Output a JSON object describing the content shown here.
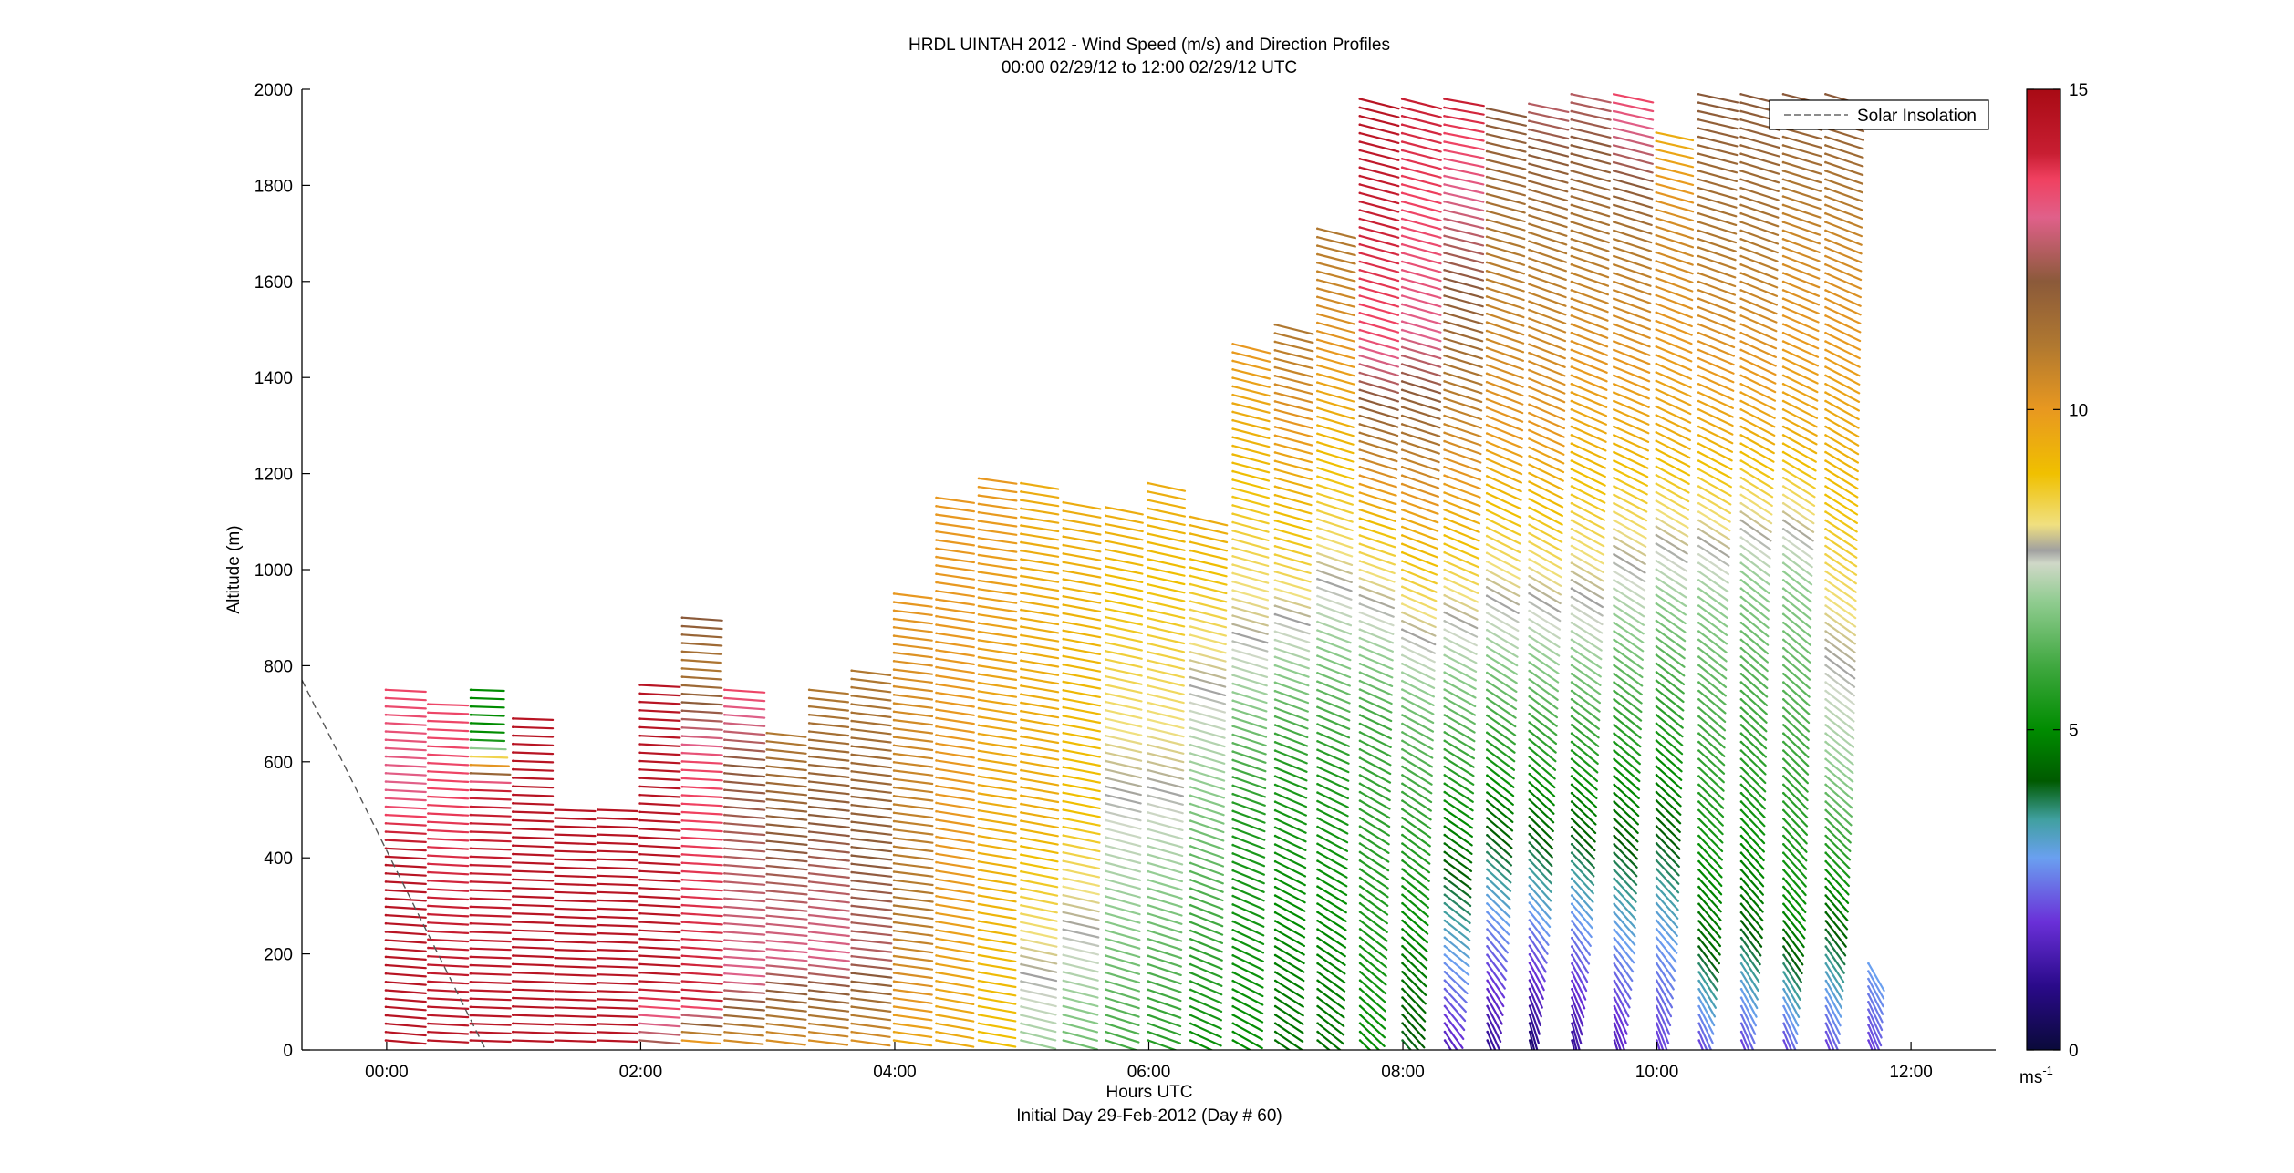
{
  "chart_data": {
    "type": "wind-barb-profile",
    "title": "HRDL UINTAH 2012 - Wind Speed (m/s) and Direction Profiles",
    "subtitle": "00:00 02/29/12 to 12:00 02/29/12  UTC",
    "xlabel": "Hours UTC",
    "xlabel_note": "Initial Day 29-Feb-2012 (Day # 60)",
    "ylabel": "Altitude (m)",
    "xlim": [
      -0.667,
      12.667
    ],
    "ylim": [
      0,
      2000
    ],
    "x_ticks": [
      0,
      2,
      4,
      6,
      8,
      10,
      12
    ],
    "x_tick_labels": [
      "00:00",
      "02:00",
      "04:00",
      "06:00",
      "08:00",
      "10:00",
      "12:00"
    ],
    "y_ticks": [
      0,
      200,
      400,
      600,
      800,
      1000,
      1200,
      1400,
      1600,
      1800,
      2000
    ],
    "y_tick_labels": [
      "0",
      "200",
      "400",
      "600",
      "800",
      "1000",
      "1200",
      "1400",
      "1600",
      "1800",
      "2000"
    ],
    "legend": {
      "placement": "top-right",
      "entries": [
        {
          "label": "Solar Insolation",
          "style": "dashed",
          "color": "#666666"
        }
      ]
    },
    "solar_insolation": {
      "x": [
        -0.667,
        0.78
      ],
      "y": [
        770,
        0
      ]
    },
    "colorbar": {
      "range": [
        0,
        15
      ],
      "ticks": [
        0,
        5,
        10,
        15
      ],
      "tick_labels": [
        "0",
        "5",
        "10",
        "15"
      ],
      "unit_label": "ms",
      "unit_exponent": "-1",
      "stops": [
        {
          "v": 0,
          "color": "#0a0a3a"
        },
        {
          "v": 1,
          "color": "#2a0a8a"
        },
        {
          "v": 2,
          "color": "#6a30d8"
        },
        {
          "v": 3,
          "color": "#6aa0f0"
        },
        {
          "v": 3.6,
          "color": "#40a0a0"
        },
        {
          "v": 4.2,
          "color": "#005a00"
        },
        {
          "v": 5,
          "color": "#008c00"
        },
        {
          "v": 6,
          "color": "#40a840"
        },
        {
          "v": 7,
          "color": "#90cc90"
        },
        {
          "v": 7.6,
          "color": "#d0d8c8"
        },
        {
          "v": 7.8,
          "color": "#a0a0a0"
        },
        {
          "v": 8.2,
          "color": "#f0e080"
        },
        {
          "v": 9,
          "color": "#f0c000"
        },
        {
          "v": 10,
          "color": "#e89820"
        },
        {
          "v": 11,
          "color": "#b07830"
        },
        {
          "v": 12,
          "color": "#8b5a3a"
        },
        {
          "v": 13,
          "color": "#e0608a"
        },
        {
          "v": 13.6,
          "color": "#f04060"
        },
        {
          "v": 14,
          "color": "#c81e32"
        },
        {
          "v": 15,
          "color": "#a80a14"
        }
      ]
    },
    "profiles": [
      {
        "t": 0,
        "ymax": 750,
        "levels": [
          [
            0,
            14.5,
            95,
            7
          ],
          [
            400,
            14.5,
            93,
            7
          ],
          [
            550,
            13,
            93,
            5
          ],
          [
            750,
            13.5,
            93,
            3
          ]
        ]
      },
      {
        "t": 0.333,
        "ymax": 720,
        "levels": [
          [
            0,
            14.5,
            93,
            7
          ],
          [
            600,
            13.5,
            93,
            5
          ],
          [
            720,
            13.5,
            92,
            3
          ]
        ]
      },
      {
        "t": 0.667,
        "ymax": 750,
        "levels": [
          [
            0,
            14.5,
            92,
            6
          ],
          [
            550,
            14,
            92,
            5
          ],
          [
            650,
            5,
            92,
            3
          ],
          [
            750,
            5,
            92,
            2
          ]
        ]
      },
      {
        "t": 1.0,
        "ymax": 690,
        "levels": [
          [
            0,
            14.5,
            92,
            5
          ],
          [
            690,
            14.5,
            92,
            4
          ]
        ]
      },
      {
        "t": 1.333,
        "ymax": 500,
        "levels": [
          [
            0,
            14.5,
            92,
            5
          ],
          [
            500,
            14.5,
            92,
            4
          ]
        ]
      },
      {
        "t": 1.667,
        "ymax": 500,
        "levels": [
          [
            0,
            14.5,
            92,
            5
          ],
          [
            500,
            14.5,
            92,
            4
          ]
        ]
      },
      {
        "t": 2.0,
        "ymax": 760,
        "levels": [
          [
            0,
            12,
            95,
            6
          ],
          [
            150,
            14.5,
            93,
            5
          ],
          [
            760,
            14.5,
            93,
            4
          ]
        ]
      },
      {
        "t": 2.333,
        "ymax": 900,
        "levels": [
          [
            0,
            9,
            95,
            10
          ],
          [
            100,
            14,
            94,
            7
          ],
          [
            600,
            13.5,
            93,
            6
          ],
          [
            800,
            11,
            94,
            5
          ],
          [
            900,
            12,
            94,
            4
          ]
        ]
      },
      {
        "t": 2.667,
        "ymax": 750,
        "levels": [
          [
            0,
            10,
            96,
            10
          ],
          [
            150,
            13,
            94,
            7
          ],
          [
            600,
            12,
            95,
            6
          ],
          [
            750,
            13.5,
            94,
            5
          ]
        ]
      },
      {
        "t": 3.0,
        "ymax": 660,
        "levels": [
          [
            0,
            10,
            97,
            12
          ],
          [
            200,
            13,
            95,
            10
          ],
          [
            660,
            11,
            96,
            8
          ]
        ]
      },
      {
        "t": 3.333,
        "ymax": 750,
        "levels": [
          [
            0,
            10,
            97,
            10
          ],
          [
            200,
            13,
            96,
            9
          ],
          [
            750,
            11,
            96,
            8
          ]
        ]
      },
      {
        "t": 3.667,
        "ymax": 790,
        "levels": [
          [
            0,
            10,
            98,
            12
          ],
          [
            200,
            12.5,
            96,
            10
          ],
          [
            790,
            11,
            97,
            9
          ]
        ]
      },
      {
        "t": 4.0,
        "ymax": 950,
        "levels": [
          [
            0,
            9.5,
            98,
            15
          ],
          [
            300,
            11,
            97,
            13
          ],
          [
            950,
            10,
            97,
            12
          ]
        ]
      },
      {
        "t": 4.333,
        "ymax": 1150,
        "levels": [
          [
            0,
            9.5,
            100,
            20
          ],
          [
            400,
            10,
            99,
            16
          ],
          [
            1150,
            10,
            98,
            13
          ]
        ]
      },
      {
        "t": 4.667,
        "ymax": 1190,
        "levels": [
          [
            0,
            9,
            100,
            22
          ],
          [
            500,
            9.5,
            99,
            18
          ],
          [
            1190,
            10,
            98,
            14
          ]
        ]
      },
      {
        "t": 5.0,
        "ymax": 1180,
        "levels": [
          [
            0,
            7,
            104,
            25
          ],
          [
            500,
            9.5,
            100,
            20
          ],
          [
            1180,
            9.5,
            99,
            16
          ]
        ]
      },
      {
        "t": 5.333,
        "ymax": 1140,
        "levels": [
          [
            0,
            6.5,
            105,
            26
          ],
          [
            500,
            9,
            101,
            22
          ],
          [
            1140,
            9.5,
            100,
            17
          ]
        ]
      },
      {
        "t": 5.667,
        "ymax": 1130,
        "levels": [
          [
            0,
            6,
            108,
            28
          ],
          [
            600,
            8,
            103,
            22
          ],
          [
            1130,
            9.5,
            101,
            18
          ]
        ]
      },
      {
        "t": 6.0,
        "ymax": 1180,
        "levels": [
          [
            0,
            5.5,
            110,
            30
          ],
          [
            600,
            8,
            104,
            24
          ],
          [
            1180,
            9.5,
            102,
            20
          ]
        ]
      },
      {
        "t": 6.333,
        "ymax": 1110,
        "levels": [
          [
            0,
            5,
            115,
            32
          ],
          [
            700,
            7.5,
            106,
            26
          ],
          [
            1110,
            9.5,
            103,
            22
          ]
        ]
      },
      {
        "t": 6.667,
        "ymax": 1470,
        "levels": [
          [
            0,
            5,
            120,
            34
          ],
          [
            500,
            5.5,
            110,
            30
          ],
          [
            900,
            8,
            106,
            26
          ],
          [
            1470,
            10,
            104,
            22
          ]
        ]
      },
      {
        "t": 7.0,
        "ymax": 1510,
        "levels": [
          [
            0,
            4.5,
            125,
            36
          ],
          [
            600,
            5.5,
            112,
            32
          ],
          [
            1000,
            8.5,
            106,
            28
          ],
          [
            1510,
            11,
            104,
            24
          ]
        ]
      },
      {
        "t": 7.333,
        "ymax": 1710,
        "levels": [
          [
            0,
            4.5,
            130,
            38
          ],
          [
            600,
            5.5,
            114,
            34
          ],
          [
            1100,
            8.5,
            108,
            30
          ],
          [
            1710,
            11,
            104,
            26
          ]
        ]
      },
      {
        "t": 7.667,
        "ymax": 1980,
        "levels": [
          [
            0,
            5,
            135,
            38
          ],
          [
            700,
            6,
            115,
            35
          ],
          [
            1100,
            9,
            108,
            32
          ],
          [
            1500,
            13.5,
            106,
            28
          ],
          [
            1980,
            14.5,
            104,
            24
          ]
        ]
      },
      {
        "t": 8.0,
        "ymax": 1980,
        "levels": [
          [
            0,
            4,
            140,
            40
          ],
          [
            700,
            6.5,
            118,
            36
          ],
          [
            1100,
            9.5,
            110,
            32
          ],
          [
            1500,
            13,
            106,
            28
          ],
          [
            1980,
            14,
            104,
            24
          ]
        ]
      },
      {
        "t": 8.333,
        "ymax": 1980,
        "levels": [
          [
            0,
            1.5,
            150,
            40
          ],
          [
            200,
            3,
            130,
            40
          ],
          [
            800,
            7,
            118,
            36
          ],
          [
            1200,
            10,
            110,
            32
          ],
          [
            1700,
            12.5,
            104,
            28
          ],
          [
            1980,
            14,
            100,
            26
          ]
        ]
      },
      {
        "t": 8.667,
        "ymax": 1960,
        "levels": [
          [
            0,
            1,
            160,
            40
          ],
          [
            300,
            3,
            135,
            40
          ],
          [
            900,
            7.5,
            120,
            36
          ],
          [
            1300,
            10,
            112,
            32
          ],
          [
            1700,
            11,
            106,
            28
          ],
          [
            1960,
            12,
            102,
            26
          ]
        ]
      },
      {
        "t": 9.0,
        "ymax": 1970,
        "levels": [
          [
            0,
            0.5,
            170,
            40
          ],
          [
            300,
            3,
            140,
            40
          ],
          [
            900,
            7.5,
            122,
            36
          ],
          [
            1300,
            10,
            114,
            32
          ],
          [
            1700,
            11,
            108,
            28
          ],
          [
            1970,
            12.5,
            102,
            26
          ]
        ]
      },
      {
        "t": 9.333,
        "ymax": 1990,
        "levels": [
          [
            0,
            1,
            170,
            40
          ],
          [
            300,
            3,
            140,
            40
          ],
          [
            900,
            7.5,
            122,
            36
          ],
          [
            1300,
            9.5,
            114,
            32
          ],
          [
            1700,
            11,
            108,
            28
          ],
          [
            1990,
            12.5,
            102,
            26
          ]
        ]
      },
      {
        "t": 9.667,
        "ymax": 1990,
        "levels": [
          [
            0,
            1.5,
            165,
            40
          ],
          [
            250,
            3,
            140,
            40
          ],
          [
            900,
            7,
            124,
            36
          ],
          [
            1300,
            9.5,
            114,
            32
          ],
          [
            1700,
            11,
            108,
            28
          ],
          [
            1990,
            13.5,
            102,
            26
          ]
        ]
      },
      {
        "t": 10.0,
        "ymax": 1910,
        "levels": [
          [
            0,
            2,
            165,
            40
          ],
          [
            250,
            3,
            140,
            40
          ],
          [
            950,
            7,
            124,
            36
          ],
          [
            1300,
            9.5,
            116,
            32
          ],
          [
            1700,
            10.5,
            108,
            28
          ],
          [
            1910,
            9.5,
            102,
            26
          ]
        ]
      },
      {
        "t": 10.333,
        "ymax": 1990,
        "levels": [
          [
            0,
            2,
            160,
            40
          ],
          [
            250,
            4.5,
            140,
            40
          ],
          [
            950,
            7,
            126,
            36
          ],
          [
            1300,
            9.5,
            116,
            32
          ],
          [
            1700,
            11,
            108,
            28
          ],
          [
            1990,
            12,
            102,
            26
          ]
        ]
      },
      {
        "t": 10.667,
        "ymax": 1990,
        "levels": [
          [
            0,
            2,
            160,
            40
          ],
          [
            300,
            4.5,
            140,
            40
          ],
          [
            1000,
            7,
            128,
            36
          ],
          [
            1300,
            9.5,
            118,
            32
          ],
          [
            1700,
            11,
            110,
            28
          ],
          [
            1990,
            12,
            104,
            26
          ]
        ]
      },
      {
        "t": 11.0,
        "ymax": 1990,
        "levels": [
          [
            0,
            2,
            160,
            40
          ],
          [
            300,
            5,
            140,
            40
          ],
          [
            1000,
            7,
            128,
            36
          ],
          [
            1300,
            9.5,
            118,
            32
          ],
          [
            1700,
            10.5,
            110,
            28
          ],
          [
            1990,
            12,
            104,
            26
          ]
        ]
      },
      {
        "t": 11.333,
        "ymax": 1990,
        "levels": [
          [
            0,
            2,
            160,
            40
          ],
          [
            300,
            4.5,
            140,
            40
          ],
          [
            600,
            7,
            130,
            36
          ],
          [
            1300,
            9.5,
            120,
            32
          ],
          [
            1700,
            10.5,
            112,
            28
          ],
          [
            1990,
            12,
            106,
            26
          ]
        ]
      },
      {
        "t": 11.667,
        "ymax": 180,
        "levels": [
          [
            0,
            2,
            160,
            40
          ],
          [
            180,
            3,
            150,
            40
          ]
        ]
      }
    ]
  }
}
